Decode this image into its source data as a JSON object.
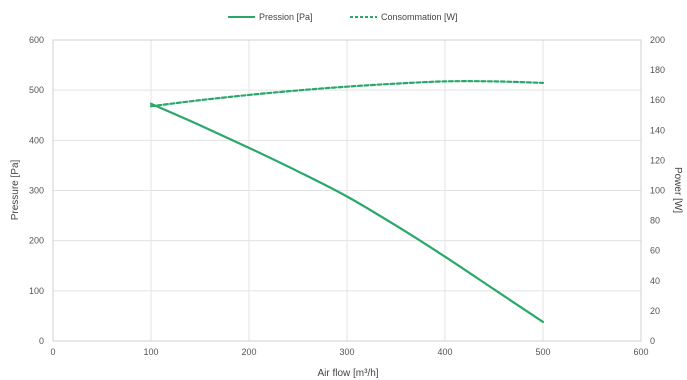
{
  "chart_data": {
    "type": "line",
    "xlabel": "Air flow [m³/h]",
    "ylabel_left": "Pressure [Pa]",
    "ylabel_right": "Power [W]",
    "xlim": [
      0,
      600
    ],
    "ylim_left": [
      0,
      600
    ],
    "ylim_right": [
      0,
      200
    ],
    "x_ticks": [
      "0",
      "100",
      "200",
      "300",
      "400",
      "500",
      "600"
    ],
    "y_left_ticks": [
      "0",
      "100",
      "200",
      "300",
      "400",
      "500",
      "600"
    ],
    "y_right_ticks": [
      "0",
      "20",
      "40",
      "60",
      "80",
      "100",
      "120",
      "140",
      "160",
      "180",
      "200"
    ],
    "grid": true,
    "legend_position": "top-center",
    "series": [
      {
        "name": "Pression [Pa]",
        "axis": "left",
        "style": "solid",
        "color": "#2aa86a",
        "x": [
          100,
          150,
          200,
          250,
          300,
          350,
          400,
          450,
          500
        ],
        "y": [
          473,
          430,
          385,
          338,
          288,
          230,
          168,
          103,
          38
        ]
      },
      {
        "name": "Consommation [W]",
        "axis": "right",
        "style": "dashed",
        "color": "#2aa86a",
        "x": [
          100,
          150,
          200,
          250,
          300,
          350,
          400,
          450,
          500
        ],
        "y": [
          156,
          160,
          163.5,
          166.5,
          169,
          171,
          172.5,
          172.5,
          171.5
        ]
      }
    ]
  }
}
